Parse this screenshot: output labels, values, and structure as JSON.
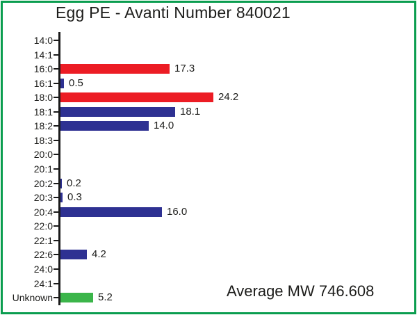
{
  "frame": {
    "border_color": "#0a9d4f",
    "background": "#ffffff"
  },
  "chart_data": {
    "type": "bar",
    "orientation": "horizontal",
    "title": "Egg PE - Avanti Number 840021",
    "annotation": "Average MW 746.608",
    "categories": [
      "14:0",
      "14:1",
      "16:0",
      "16:1",
      "18:0",
      "18:1",
      "18:2",
      "18:3",
      "20:0",
      "20:1",
      "20:2",
      "20:3",
      "20:4",
      "22:0",
      "22:1",
      "22:6",
      "24:0",
      "24:1",
      "Unknown"
    ],
    "values": [
      0,
      0,
      17.3,
      0.5,
      24.2,
      18.1,
      14.0,
      0,
      0,
      0,
      0.2,
      0.3,
      16.0,
      0,
      0,
      4.2,
      0,
      0,
      5.2
    ],
    "value_labels": [
      "",
      "",
      "17.3",
      "0.5",
      "24.2",
      "18.1",
      "14.0",
      "",
      "",
      "",
      "0.2",
      "0.3",
      "16.0",
      "",
      "",
      "4.2",
      "",
      "",
      "5.2"
    ],
    "bar_colors": [
      "none",
      "none",
      "red",
      "blue",
      "red",
      "blue",
      "blue",
      "none",
      "none",
      "none",
      "blue",
      "blue",
      "blue",
      "none",
      "none",
      "blue",
      "none",
      "none",
      "green"
    ],
    "palette": {
      "red": "#ec1c24",
      "blue": "#2e3192",
      "green": "#3bb54a"
    },
    "axis_color": "#1a1a1a",
    "text_color": "#1d1d1b",
    "xlabel": "",
    "ylabel": "",
    "xlim": [
      0,
      26
    ],
    "grid": false,
    "legend": false
  }
}
